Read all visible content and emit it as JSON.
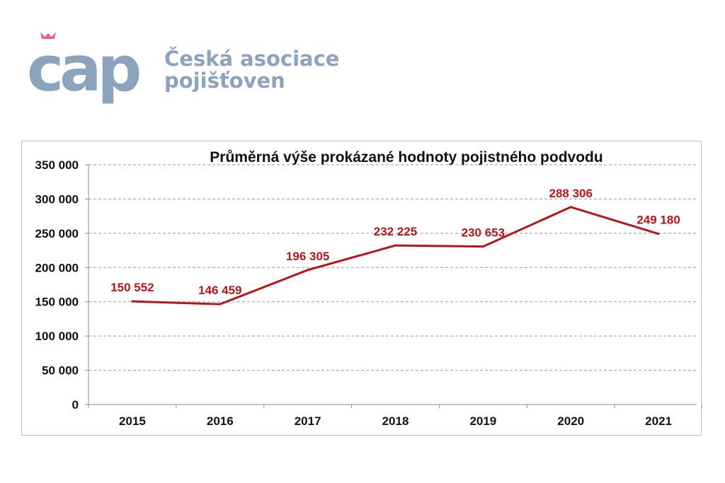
{
  "logo": {
    "mark_text": "cap",
    "name_line1": "Česká asociace",
    "name_line2": "pojišťoven",
    "mark_color": "#8ca3bd",
    "accent_color": "#e5677a"
  },
  "chart_data": {
    "type": "line",
    "title": "Průměrná výše prokázané hodnoty pojistného podvodu",
    "xlabel": "",
    "ylabel": "",
    "categories": [
      "2015",
      "2016",
      "2017",
      "2018",
      "2019",
      "2020",
      "2021"
    ],
    "series": [
      {
        "values": [
          150552,
          146459,
          196305,
          232225,
          230653,
          288306,
          249180
        ],
        "labels": [
          "150 552",
          "146 459",
          "196 305",
          "232 225",
          "230 653",
          "288 306",
          "249 180"
        ],
        "color": "#b5151b"
      }
    ],
    "ylim": [
      0,
      350000
    ],
    "yticks": [
      0,
      50000,
      100000,
      150000,
      200000,
      250000,
      300000,
      350000
    ],
    "ytick_labels": [
      "0",
      "50 000",
      "100 000",
      "150 000",
      "200 000",
      "250 000",
      "300 000",
      "350 000"
    ],
    "grid": true,
    "legend": "none"
  }
}
